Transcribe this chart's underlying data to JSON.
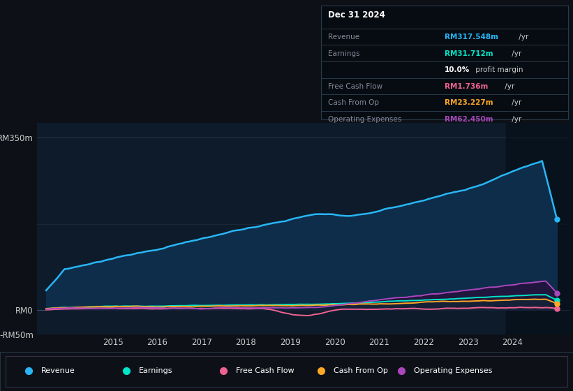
{
  "background_color": "#0d1117",
  "plot_bg_color": "#0d1b2a",
  "ylim": [
    -50,
    380
  ],
  "xlim": [
    2013.3,
    2025.3
  ],
  "xlabel_years": [
    2015,
    2016,
    2017,
    2018,
    2019,
    2020,
    2021,
    2022,
    2023,
    2024
  ],
  "revenue_color": "#29b6f6",
  "earnings_color": "#00e5c8",
  "fcf_color": "#f06292",
  "cashfromop_color": "#ffa726",
  "opex_color": "#ab47bc",
  "revenue_fill_color": "#0d2d4a",
  "earnings_fill_color": "#0d3a2e",
  "opex_fill_color": "#2a0d3a",
  "cashop_fill_color": "#0d2a3a",
  "legend_items": [
    {
      "label": "Revenue",
      "color": "#29b6f6"
    },
    {
      "label": "Earnings",
      "color": "#00e5c8"
    },
    {
      "label": "Free Cash Flow",
      "color": "#f06292"
    },
    {
      "label": "Cash From Op",
      "color": "#ffa726"
    },
    {
      "label": "Operating Expenses",
      "color": "#ab47bc"
    }
  ]
}
